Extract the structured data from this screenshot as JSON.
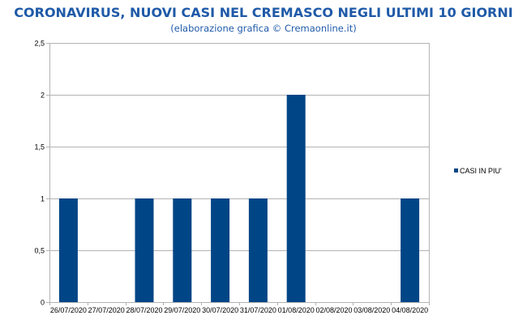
{
  "header": {
    "title": "CORONAVIRUS, NUOVI CASI NEL CREMASCO NEGLI ULTIMI 10 GIORNI",
    "subtitle": "(elaborazione grafica © Cremaonline.it)"
  },
  "chart_data": {
    "type": "bar",
    "categories": [
      "26/07/2020",
      "27/07/2020",
      "28/07/2020",
      "29/07/2020",
      "30/07/2020",
      "31/07/2020",
      "01/08/2020",
      "02/08/2020",
      "03/08/2020",
      "04/08/2020"
    ],
    "series": [
      {
        "name": "CASI IN PIU'",
        "values": [
          1,
          0,
          1,
          1,
          1,
          1,
          2,
          0,
          0,
          1
        ],
        "color": "#004586"
      }
    ],
    "ylim": [
      0,
      2.5
    ],
    "yticks": [
      "0",
      "0,5",
      "1",
      "1,5",
      "2",
      "2,5"
    ],
    "grid": true,
    "legend_position": "right",
    "gridline_color": "#b3b3b3"
  }
}
